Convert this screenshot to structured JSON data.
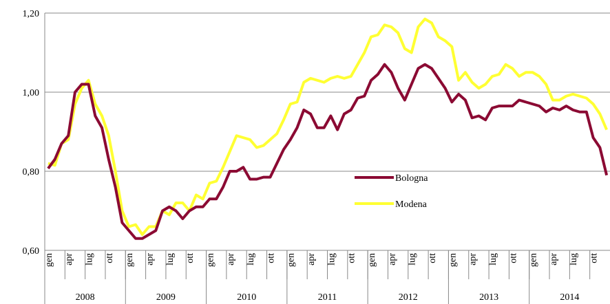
{
  "chart_data": {
    "type": "line",
    "categories": [
      "gen",
      null,
      null,
      "apr",
      null,
      null,
      "lug",
      null,
      null,
      "ott",
      null,
      null,
      "gen",
      null,
      null,
      "apr",
      null,
      null,
      "lug",
      null,
      null,
      "ott",
      null,
      null,
      "gen",
      null,
      null,
      "apr",
      null,
      null,
      "lug",
      null,
      null,
      "ott",
      null,
      null,
      "gen",
      null,
      null,
      "apr",
      null,
      null,
      "lug",
      null,
      null,
      "ott",
      null,
      null,
      "gen",
      null,
      null,
      "apr",
      null,
      null,
      "lug",
      null,
      null,
      "ott",
      null,
      null,
      "gen",
      null,
      null,
      "apr",
      null,
      null,
      "lug",
      null,
      null,
      "ott",
      null,
      null,
      "gen",
      null,
      null,
      "apr",
      null,
      null,
      "lug",
      null,
      null,
      "ott",
      null,
      null
    ],
    "years": [
      "2008",
      "2009",
      "2010",
      "2011",
      "2012",
      "2013",
      "2014"
    ],
    "series": [
      {
        "name": "Bologna",
        "color": "#8b0a33",
        "values": [
          0.807,
          0.83,
          0.87,
          0.89,
          1.0,
          1.02,
          1.02,
          0.94,
          0.91,
          0.83,
          0.76,
          0.67,
          0.65,
          0.63,
          0.63,
          0.64,
          0.65,
          0.7,
          0.71,
          0.7,
          0.68,
          0.7,
          0.71,
          0.71,
          0.73,
          0.73,
          0.76,
          0.8,
          0.8,
          0.81,
          0.78,
          0.78,
          0.785,
          0.785,
          0.82,
          0.855,
          0.88,
          0.91,
          0.955,
          0.945,
          0.91,
          0.91,
          0.94,
          0.905,
          0.945,
          0.955,
          0.985,
          0.99,
          1.03,
          1.045,
          1.07,
          1.05,
          1.01,
          0.98,
          1.02,
          1.06,
          1.07,
          1.06,
          1.035,
          1.01,
          0.975,
          0.995,
          0.98,
          0.935,
          0.94,
          0.93,
          0.96,
          0.965,
          0.965,
          0.965,
          0.98,
          0.975,
          0.97,
          0.965,
          0.95,
          0.96,
          0.955,
          0.965,
          0.955,
          0.95,
          0.95,
          0.885,
          0.86,
          0.79
        ]
      },
      {
        "name": "Modena",
        "color": "#ffff33",
        "values": [
          0.82,
          0.815,
          0.87,
          0.88,
          0.97,
          1.01,
          1.03,
          0.97,
          0.94,
          0.89,
          0.8,
          0.7,
          0.66,
          0.665,
          0.64,
          0.66,
          0.66,
          0.7,
          0.69,
          0.72,
          0.72,
          0.7,
          0.74,
          0.73,
          0.77,
          0.775,
          0.81,
          0.85,
          0.89,
          0.885,
          0.88,
          0.86,
          0.865,
          0.88,
          0.895,
          0.93,
          0.97,
          0.975,
          1.025,
          1.035,
          1.03,
          1.025,
          1.035,
          1.04,
          1.035,
          1.04,
          1.07,
          1.1,
          1.14,
          1.145,
          1.17,
          1.165,
          1.15,
          1.11,
          1.1,
          1.165,
          1.185,
          1.175,
          1.14,
          1.13,
          1.115,
          1.03,
          1.05,
          1.025,
          1.01,
          1.02,
          1.04,
          1.045,
          1.07,
          1.06,
          1.04,
          1.05,
          1.05,
          1.04,
          1.02,
          0.98,
          0.98,
          0.99,
          0.995,
          0.99,
          0.985,
          0.97,
          0.945,
          0.905
        ]
      }
    ],
    "ylim": [
      0.6,
      1.2
    ],
    "yticks": [
      {
        "value": 0.6,
        "label": "0,60"
      },
      {
        "value": 0.8,
        "label": "0,80"
      },
      {
        "value": 1.0,
        "label": "1,00"
      },
      {
        "value": 1.2,
        "label": "1,20"
      }
    ],
    "grid": true,
    "legend": "center"
  }
}
